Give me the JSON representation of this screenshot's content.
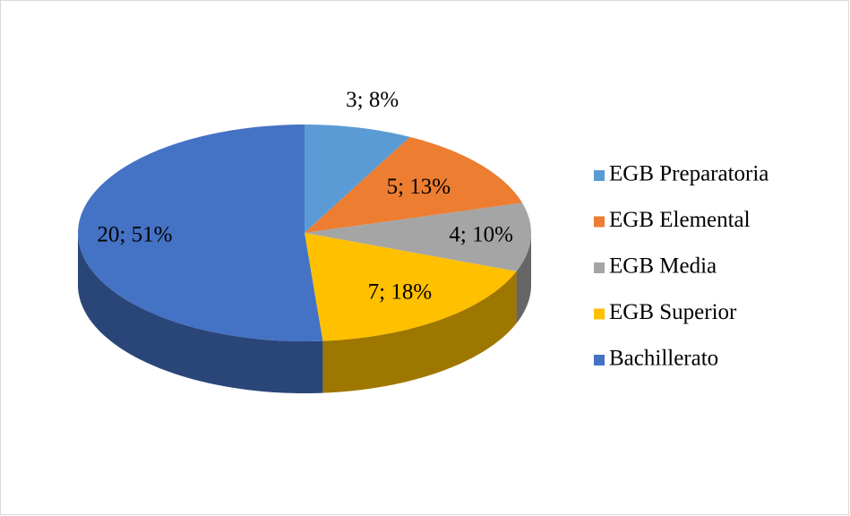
{
  "chart_data": {
    "type": "pie",
    "categories": [
      "EGB Preparatoria",
      "EGB Elemental",
      "EGB Media",
      "EGB Superior",
      "Bachillerato"
    ],
    "values": [
      3,
      5,
      4,
      7,
      20
    ],
    "value_labels": [
      "3; 8%",
      "5; 13%",
      "4; 10%",
      "7; 18%",
      "20; 51%"
    ],
    "colors": [
      "#5b9bd5",
      "#ed7d31",
      "#a5a5a5",
      "#ffc000",
      "#4472c4"
    ],
    "legend": "right"
  }
}
